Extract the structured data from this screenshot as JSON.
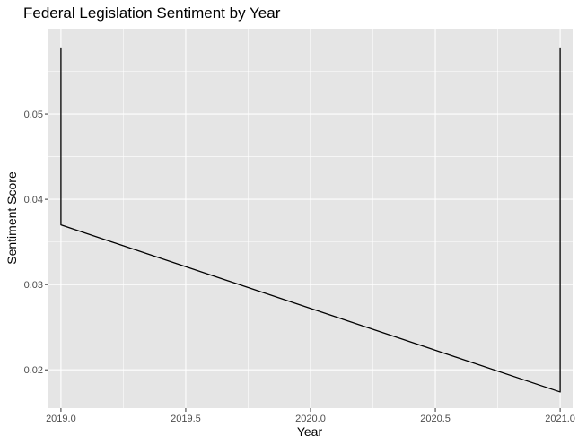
{
  "chart_data": {
    "type": "line",
    "title": "Federal Legislation Sentiment by Year",
    "xlabel": "Year",
    "ylabel": "Sentiment Score",
    "xlim": [
      1018.95,
      2021.05
    ],
    "ylim": [
      0.0155,
      0.06
    ],
    "x_ticks": [
      2019.0,
      2019.5,
      2020.0,
      2020.5,
      2021.0
    ],
    "x_tick_labels": [
      "2019.0",
      "2019.5",
      "2020.0",
      "2020.5",
      "2021.0"
    ],
    "y_ticks": [
      0.02,
      0.03,
      0.04,
      0.05
    ],
    "y_tick_labels": [
      "0.02",
      "0.03",
      "0.04",
      "0.05"
    ],
    "grid": true,
    "panel_background": "#e5e5e5",
    "grid_color": "#ffffff",
    "line_color": "#000000",
    "series": [
      {
        "x": [
          2019.0,
          2019.0,
          2021.0,
          2021.0
        ],
        "y": [
          0.0578,
          0.037,
          0.0174,
          0.0578
        ]
      }
    ]
  }
}
